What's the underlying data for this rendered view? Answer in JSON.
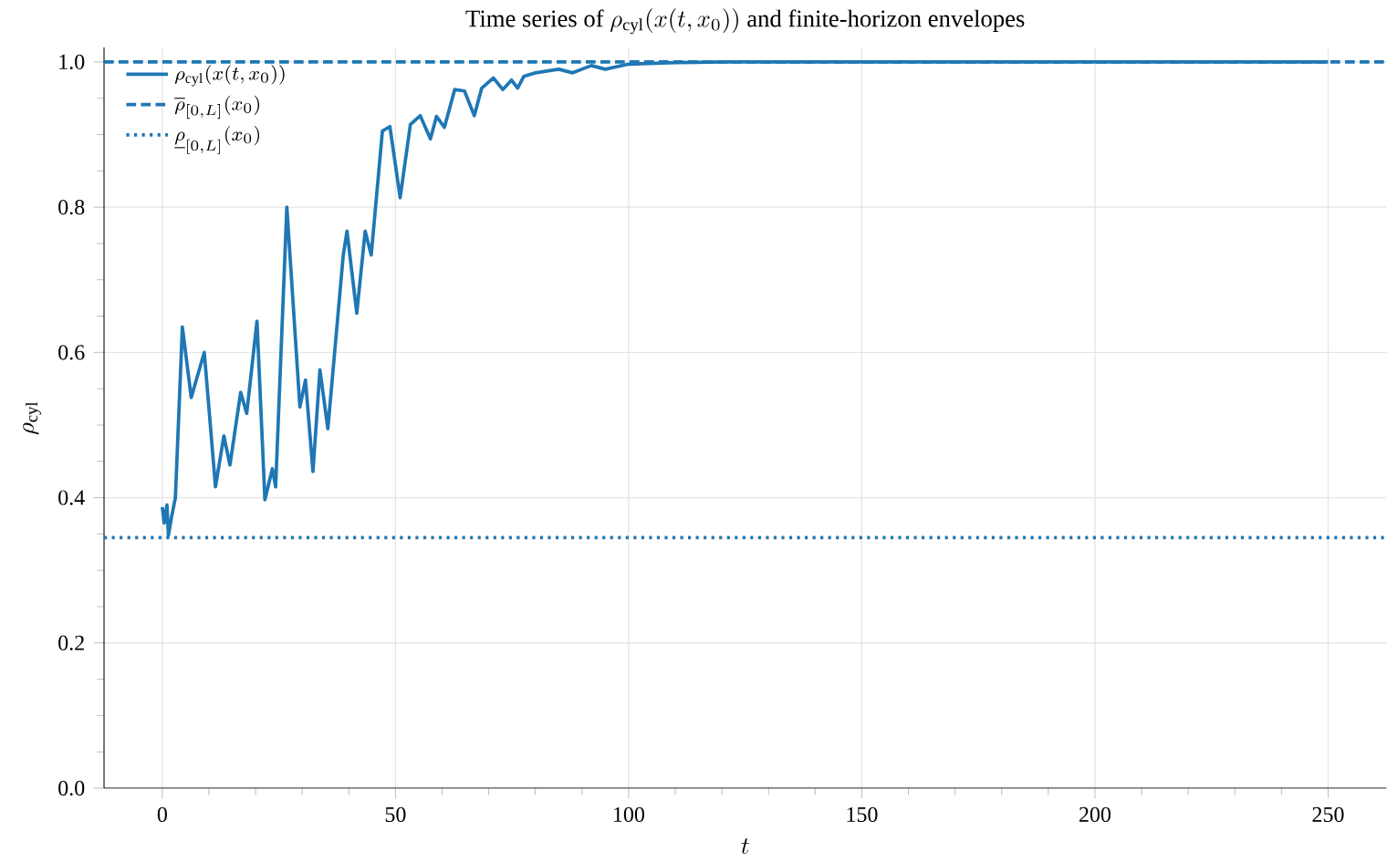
{
  "chart_data": {
    "type": "line",
    "title": "\\mbox{Time series of }\\rho_{\\mathrm{cyl}}(x(t,x_0))\\mbox{ and finite-horizon envelopes}",
    "xlabel": "t",
    "ylabel": "\\rho_{\\mathrm{cyl}}",
    "series": [
      {
        "name": "\\rho_{\\mathrm{cyl}}(x(t,x_0))",
        "color": "#1f77b4",
        "x": [
          0,
          0.4,
          1,
          1.3,
          2,
          2.8,
          4.3,
          6.2,
          9,
          11.4,
          13.2,
          14.5,
          16.8,
          18.1,
          20.3,
          22,
          23.6,
          24.3,
          26.7,
          29.5,
          30.7,
          32.3,
          33.8,
          35.5,
          38.8,
          39.6,
          41.7,
          43.5,
          44.8,
          47.2,
          48.8,
          51,
          53.2,
          55.3,
          57.5,
          58.8,
          60.5,
          62.7,
          64.8,
          66.9,
          68.5,
          71,
          73,
          74.9,
          76.2,
          77.5,
          80,
          85,
          88,
          92,
          95,
          100,
          105,
          110,
          120,
          150,
          200,
          250
        ],
        "values": [
          0.387,
          0.365,
          0.39,
          0.348,
          0.374,
          0.4,
          0.635,
          0.538,
          0.6,
          0.415,
          0.485,
          0.445,
          0.545,
          0.516,
          0.643,
          0.397,
          0.44,
          0.415,
          0.8,
          0.525,
          0.562,
          0.436,
          0.576,
          0.495,
          0.734,
          0.767,
          0.654,
          0.767,
          0.734,
          0.905,
          0.911,
          0.813,
          0.914,
          0.926,
          0.894,
          0.925,
          0.91,
          0.962,
          0.96,
          0.926,
          0.964,
          0.978,
          0.962,
          0.975,
          0.964,
          0.98,
          0.985,
          0.99,
          0.985,
          0.995,
          0.99,
          0.997,
          0.998,
          0.999,
          1.0,
          1.0,
          1.0,
          1.0
        ]
      }
    ],
    "ref_lines": [
      {
        "axis": "y",
        "value": 1.0,
        "label": "\\overline{\\rho}_{[0,L]}(x_0)",
        "color": "#1f77b4",
        "line_style": "dashed"
      },
      {
        "axis": "y",
        "value": 0.345,
        "label": "\\underline{\\rho}_{[0,L]}(x_0)",
        "color": "#1f77b4",
        "line_style": "dotted"
      }
    ],
    "xlim": [
      -12.5,
      262.5
    ],
    "ylim": [
      0,
      1.02
    ],
    "xticks": [
      0,
      50,
      100,
      150,
      200,
      250
    ],
    "yticks": [
      {
        "value": 0,
        "label": "0.0"
      },
      {
        "value": 0.2,
        "label": "0.2"
      },
      {
        "value": 0.4,
        "label": "0.4"
      },
      {
        "value": 0.6,
        "label": "0.6"
      },
      {
        "value": 0.8,
        "label": "0.8"
      },
      {
        "value": 1.0,
        "label": "1.0"
      }
    ],
    "grid": true,
    "legend": "top left"
  }
}
